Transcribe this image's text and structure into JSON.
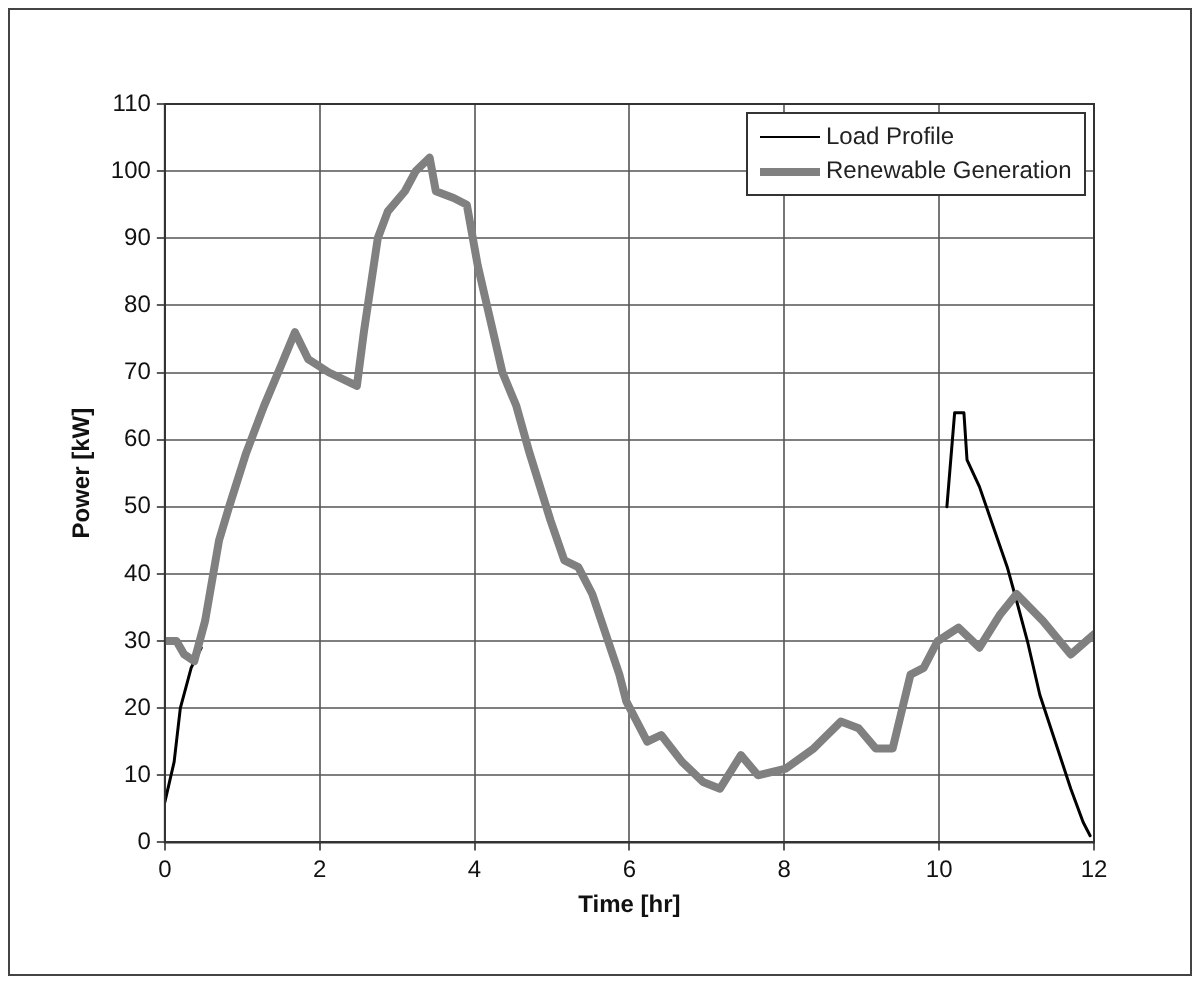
{
  "chart_data": {
    "type": "line",
    "xlabel": "Time [hr]",
    "ylabel": "Power [kW]",
    "xlim": [
      0,
      12
    ],
    "xticks": [
      0,
      2,
      4,
      6,
      8,
      10,
      12
    ],
    "ylim": [
      0,
      110
    ],
    "yticks": [
      0,
      10,
      20,
      30,
      40,
      50,
      60,
      70,
      80,
      90,
      100,
      110
    ],
    "grid": true,
    "legend": "top right",
    "marker": "none",
    "line_style": "solid",
    "series": [
      {
        "name": "Load Profile",
        "color": "#000000",
        "x": [
          0,
          0.12,
          0.2,
          0.34,
          0.47,
          5,
          10.1,
          10.2,
          10.32,
          10.36,
          10.52,
          10.7,
          10.88,
          11.0,
          11.14,
          11.3,
          11.5,
          11.7,
          11.86,
          11.95
        ],
        "values": [
          6,
          12,
          20,
          26,
          29,
          null,
          50,
          64,
          64,
          57,
          53,
          47,
          41,
          36,
          30,
          22,
          15,
          8,
          3,
          1
        ]
      },
      {
        "name": "Renewable Generation",
        "color": "#808080",
        "x": [
          0,
          0.15,
          0.25,
          0.38,
          0.52,
          0.7,
          0.83,
          1.05,
          1.28,
          1.5,
          1.68,
          1.85,
          2.12,
          2.48,
          2.57,
          2.75,
          2.88,
          3.1,
          3.24,
          3.42,
          3.5,
          3.73,
          3.9,
          4.04,
          4.18,
          4.36,
          4.54,
          4.71,
          4.98,
          5.16,
          5.34,
          5.52,
          5.87,
          5.96,
          6.23,
          6.41,
          6.68,
          6.95,
          7.17,
          7.44,
          7.66,
          8.02,
          8.38,
          8.73,
          8.96,
          9.18,
          9.4,
          9.63,
          9.8,
          9.98,
          10.25,
          10.52,
          10.79,
          11.0,
          11.34,
          11.7,
          12
        ],
        "values": [
          30,
          30,
          28,
          27,
          33,
          45,
          50,
          58,
          65,
          71,
          76,
          72,
          70,
          68,
          76,
          90,
          94,
          97,
          100,
          102,
          97,
          96,
          95,
          86,
          79,
          70,
          65,
          58,
          48,
          42,
          41,
          37,
          25,
          21,
          15,
          16,
          12,
          9,
          8,
          13,
          10,
          11,
          14,
          18,
          17,
          14,
          14,
          25,
          26,
          30,
          32,
          29,
          34,
          37,
          33,
          28,
          31
        ]
      }
    ]
  }
}
